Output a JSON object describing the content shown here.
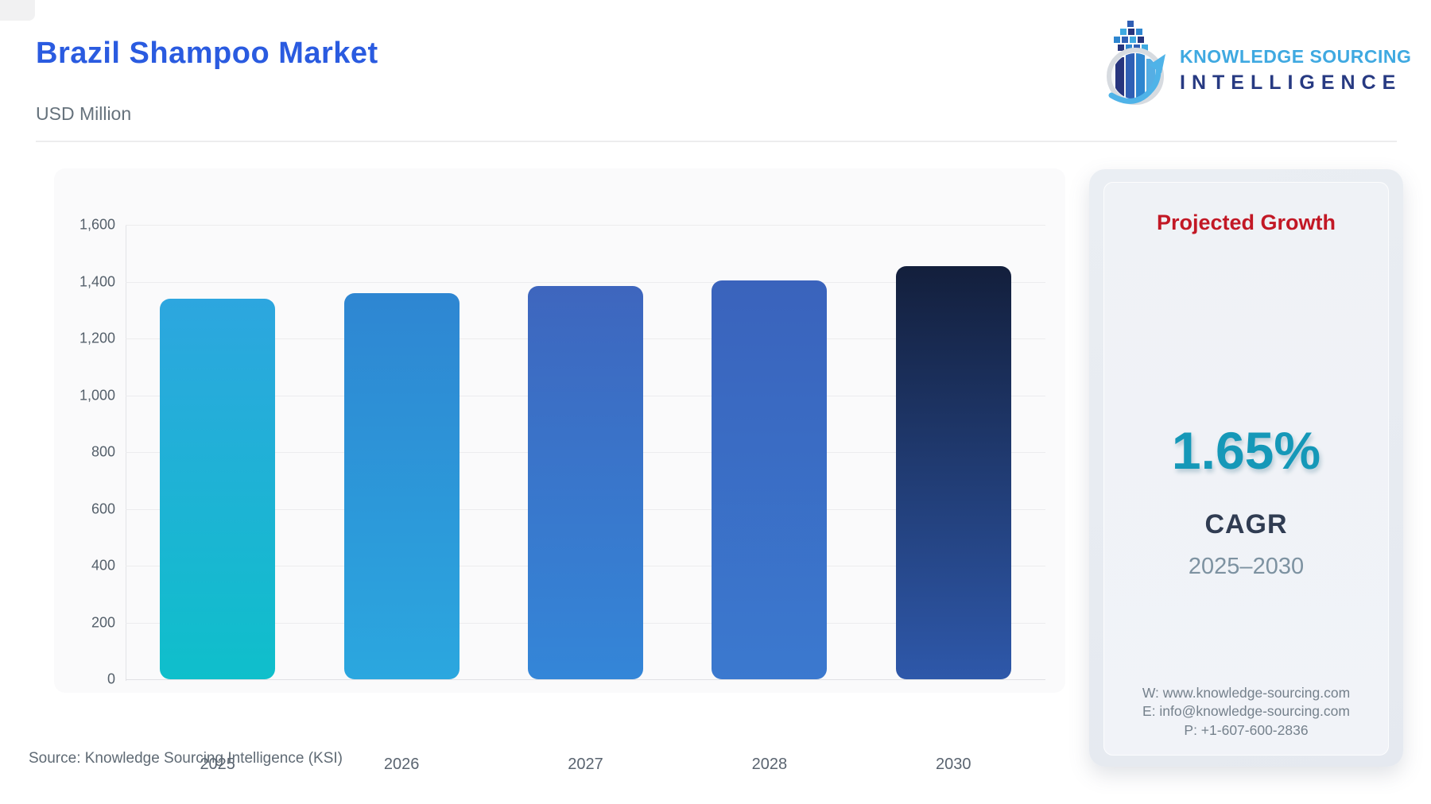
{
  "header": {
    "title": "Brazil Shampoo Market",
    "subtitle": "USD Million"
  },
  "logo": {
    "name_line1": "KNOWLEDGE SOURCING",
    "name_line2": "INTELLIGENCE",
    "line1_color": "#3FA9E1",
    "line2_color": "#273A82"
  },
  "chart_data": {
    "type": "bar",
    "title": "Brazil Shampoo Market",
    "unit": "USD Million",
    "categories": [
      "2025",
      "2026",
      "2027",
      "2028",
      "2030"
    ],
    "values": [
      1340,
      1360,
      1385,
      1405,
      1455
    ],
    "xlabel": "",
    "ylabel": "USD Million",
    "ylim": [
      0,
      1600
    ],
    "ytick_interval": 200,
    "ytick_labels": [
      "0",
      "200",
      "400",
      "600",
      "800",
      "1,000",
      "1,200",
      "1,400",
      "1,600"
    ],
    "grid": true,
    "legend": "none",
    "bar_colors": [
      {
        "top": "#2DA6DF",
        "bottom": "#0FBFCB"
      },
      {
        "top": "#2E86D2",
        "bottom": "#2BA7DF"
      },
      {
        "top": "#3E66BE",
        "bottom": "#3486D8"
      },
      {
        "top": "#3A63BC",
        "bottom": "#3B79CF"
      },
      {
        "top": "#131F3C",
        "bottom": "#2E58AA"
      }
    ]
  },
  "side_panel": {
    "heading": "Projected Growth",
    "heading_color": "#C21825",
    "growth_value": "1.65%",
    "growth_value_color": "#1598B8",
    "metric_label": "CAGR",
    "period": "2025–2030",
    "contact_website": "W: www.knowledge-sourcing.com",
    "contact_email": "E: info@knowledge-sourcing.com",
    "contact_phone": "P: +1-607-600-2836"
  },
  "footer": {
    "source": "Source: Knowledge Sourcing Intelligence (KSI)"
  }
}
